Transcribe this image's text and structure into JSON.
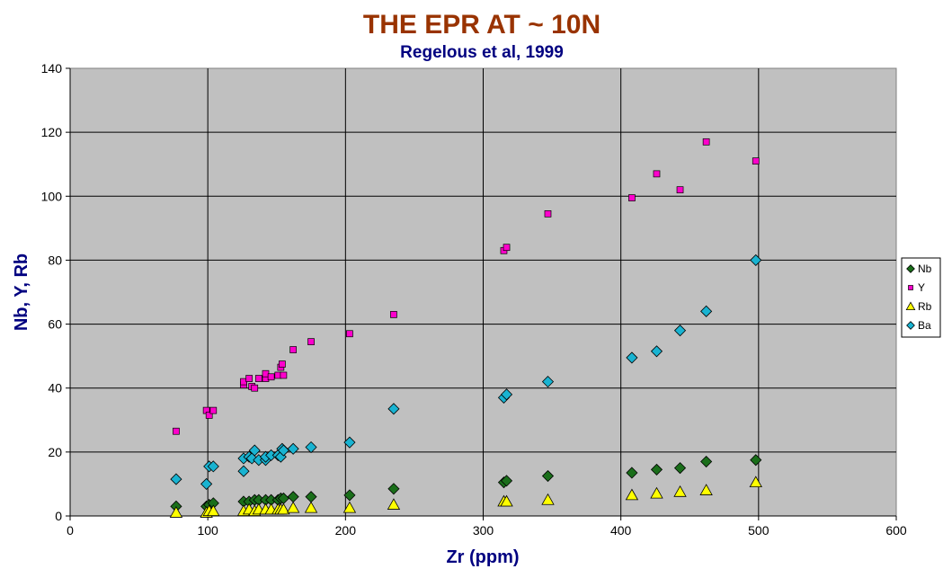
{
  "chart_data": {
    "type": "scatter",
    "title": "THE EPR AT ~ 10N",
    "subtitle": "Regelous et al, 1999",
    "xlabel": "Zr (ppm)",
    "ylabel": "Nb, Y, Rb",
    "xlim": [
      0,
      600
    ],
    "ylim": [
      0,
      140
    ],
    "xticks": [
      0,
      100,
      200,
      300,
      400,
      500,
      600
    ],
    "yticks": [
      0,
      20,
      40,
      60,
      80,
      100,
      120,
      140
    ],
    "grid": true,
    "legend": "right",
    "series": [
      {
        "name": "Nb",
        "marker": "diamond",
        "color": "#1a6e1a",
        "points": [
          [
            77,
            3
          ],
          [
            99,
            3
          ],
          [
            101,
            3.5
          ],
          [
            104,
            4
          ],
          [
            126,
            4.5
          ],
          [
            130,
            4.5
          ],
          [
            134,
            5
          ],
          [
            137,
            5
          ],
          [
            142,
            5
          ],
          [
            146,
            5
          ],
          [
            151,
            5
          ],
          [
            153,
            5.5
          ],
          [
            155,
            5.5
          ],
          [
            162,
            6
          ],
          [
            175,
            6
          ],
          [
            203,
            6.5
          ],
          [
            235,
            8.5
          ],
          [
            315,
            10.5
          ],
          [
            317,
            11
          ],
          [
            347,
            12.5
          ],
          [
            408,
            13.5
          ],
          [
            426,
            14.5
          ],
          [
            443,
            15
          ],
          [
            462,
            17
          ],
          [
            498,
            17.5
          ]
        ]
      },
      {
        "name": "Y",
        "marker": "square",
        "color": "#ff00cc",
        "points": [
          [
            77,
            26.5
          ],
          [
            99,
            33
          ],
          [
            101,
            31.5
          ],
          [
            104,
            33
          ],
          [
            126,
            41
          ],
          [
            126,
            42
          ],
          [
            130,
            43
          ],
          [
            132,
            40.5
          ],
          [
            134,
            40
          ],
          [
            137,
            43
          ],
          [
            142,
            43
          ],
          [
            142,
            44.5
          ],
          [
            146,
            43.5
          ],
          [
            151,
            44
          ],
          [
            153,
            46.5
          ],
          [
            154,
            47.5
          ],
          [
            155,
            44
          ],
          [
            162,
            52
          ],
          [
            175,
            54.5
          ],
          [
            203,
            57
          ],
          [
            235,
            63
          ],
          [
            315,
            83
          ],
          [
            317,
            84
          ],
          [
            347,
            94.5
          ],
          [
            408,
            99.5
          ],
          [
            426,
            107
          ],
          [
            443,
            102
          ],
          [
            462,
            117
          ],
          [
            498,
            111
          ]
        ]
      },
      {
        "name": "Rb",
        "marker": "triangle",
        "color": "#ffff00",
        "points": [
          [
            77,
            1
          ],
          [
            99,
            1
          ],
          [
            101,
            1.5
          ],
          [
            104,
            1.5
          ],
          [
            126,
            1.5
          ],
          [
            130,
            2
          ],
          [
            134,
            1.5
          ],
          [
            137,
            2
          ],
          [
            142,
            2
          ],
          [
            146,
            2
          ],
          [
            151,
            2
          ],
          [
            153,
            2
          ],
          [
            155,
            2
          ],
          [
            162,
            2.5
          ],
          [
            175,
            2.5
          ],
          [
            203,
            2.5
          ],
          [
            235,
            3.5
          ],
          [
            315,
            4.5
          ],
          [
            317,
            4.5
          ],
          [
            347,
            5
          ],
          [
            408,
            6.5
          ],
          [
            426,
            7
          ],
          [
            443,
            7.5
          ],
          [
            462,
            8
          ],
          [
            498,
            10.5
          ]
        ]
      },
      {
        "name": "Ba",
        "marker": "diamond",
        "color": "#19b3d1",
        "points": [
          [
            77,
            11.5
          ],
          [
            99,
            10
          ],
          [
            101,
            15.5
          ],
          [
            104,
            15.5
          ],
          [
            126,
            14
          ],
          [
            126,
            18
          ],
          [
            130,
            18.5
          ],
          [
            132,
            18
          ],
          [
            134,
            20.5
          ],
          [
            137,
            17.5
          ],
          [
            142,
            17.5
          ],
          [
            142,
            18.5
          ],
          [
            146,
            19
          ],
          [
            151,
            19
          ],
          [
            153,
            18.5
          ],
          [
            154,
            21
          ],
          [
            155,
            20.5
          ],
          [
            162,
            21
          ],
          [
            175,
            21.5
          ],
          [
            203,
            23
          ],
          [
            235,
            33.5
          ],
          [
            315,
            37
          ],
          [
            317,
            38
          ],
          [
            347,
            42
          ],
          [
            408,
            49.5
          ],
          [
            426,
            51.5
          ],
          [
            443,
            58
          ],
          [
            462,
            64
          ],
          [
            498,
            80
          ]
        ]
      }
    ]
  }
}
